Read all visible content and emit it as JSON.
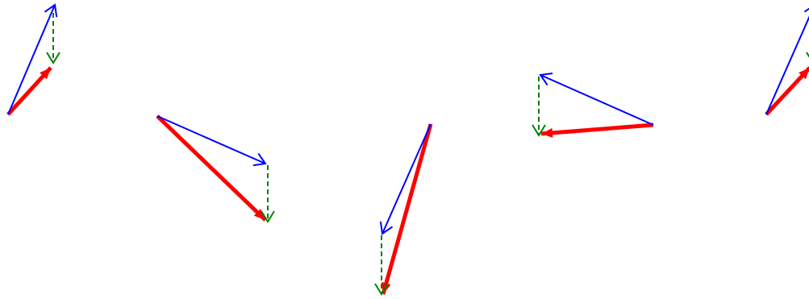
{
  "diagram": {
    "description_free": true,
    "colors": {
      "background": "#ffffff",
      "initial_vector": "#0000ff",
      "added_vector": "#008000",
      "resultant_vector": "#ff0000"
    },
    "legend": [],
    "groups": [
      {
        "id": "group-1",
        "arrows": [
          "initial",
          "added",
          "resultant"
        ]
      },
      {
        "id": "group-2",
        "arrows": [
          "initial",
          "added",
          "resultant"
        ]
      },
      {
        "id": "group-3",
        "arrows": [
          "initial",
          "added",
          "resultant"
        ]
      },
      {
        "id": "group-4",
        "arrows": [
          "initial",
          "added",
          "resultant"
        ]
      },
      {
        "id": "group-5",
        "arrows": [
          "initial",
          "added",
          "resultant"
        ]
      }
    ]
  }
}
